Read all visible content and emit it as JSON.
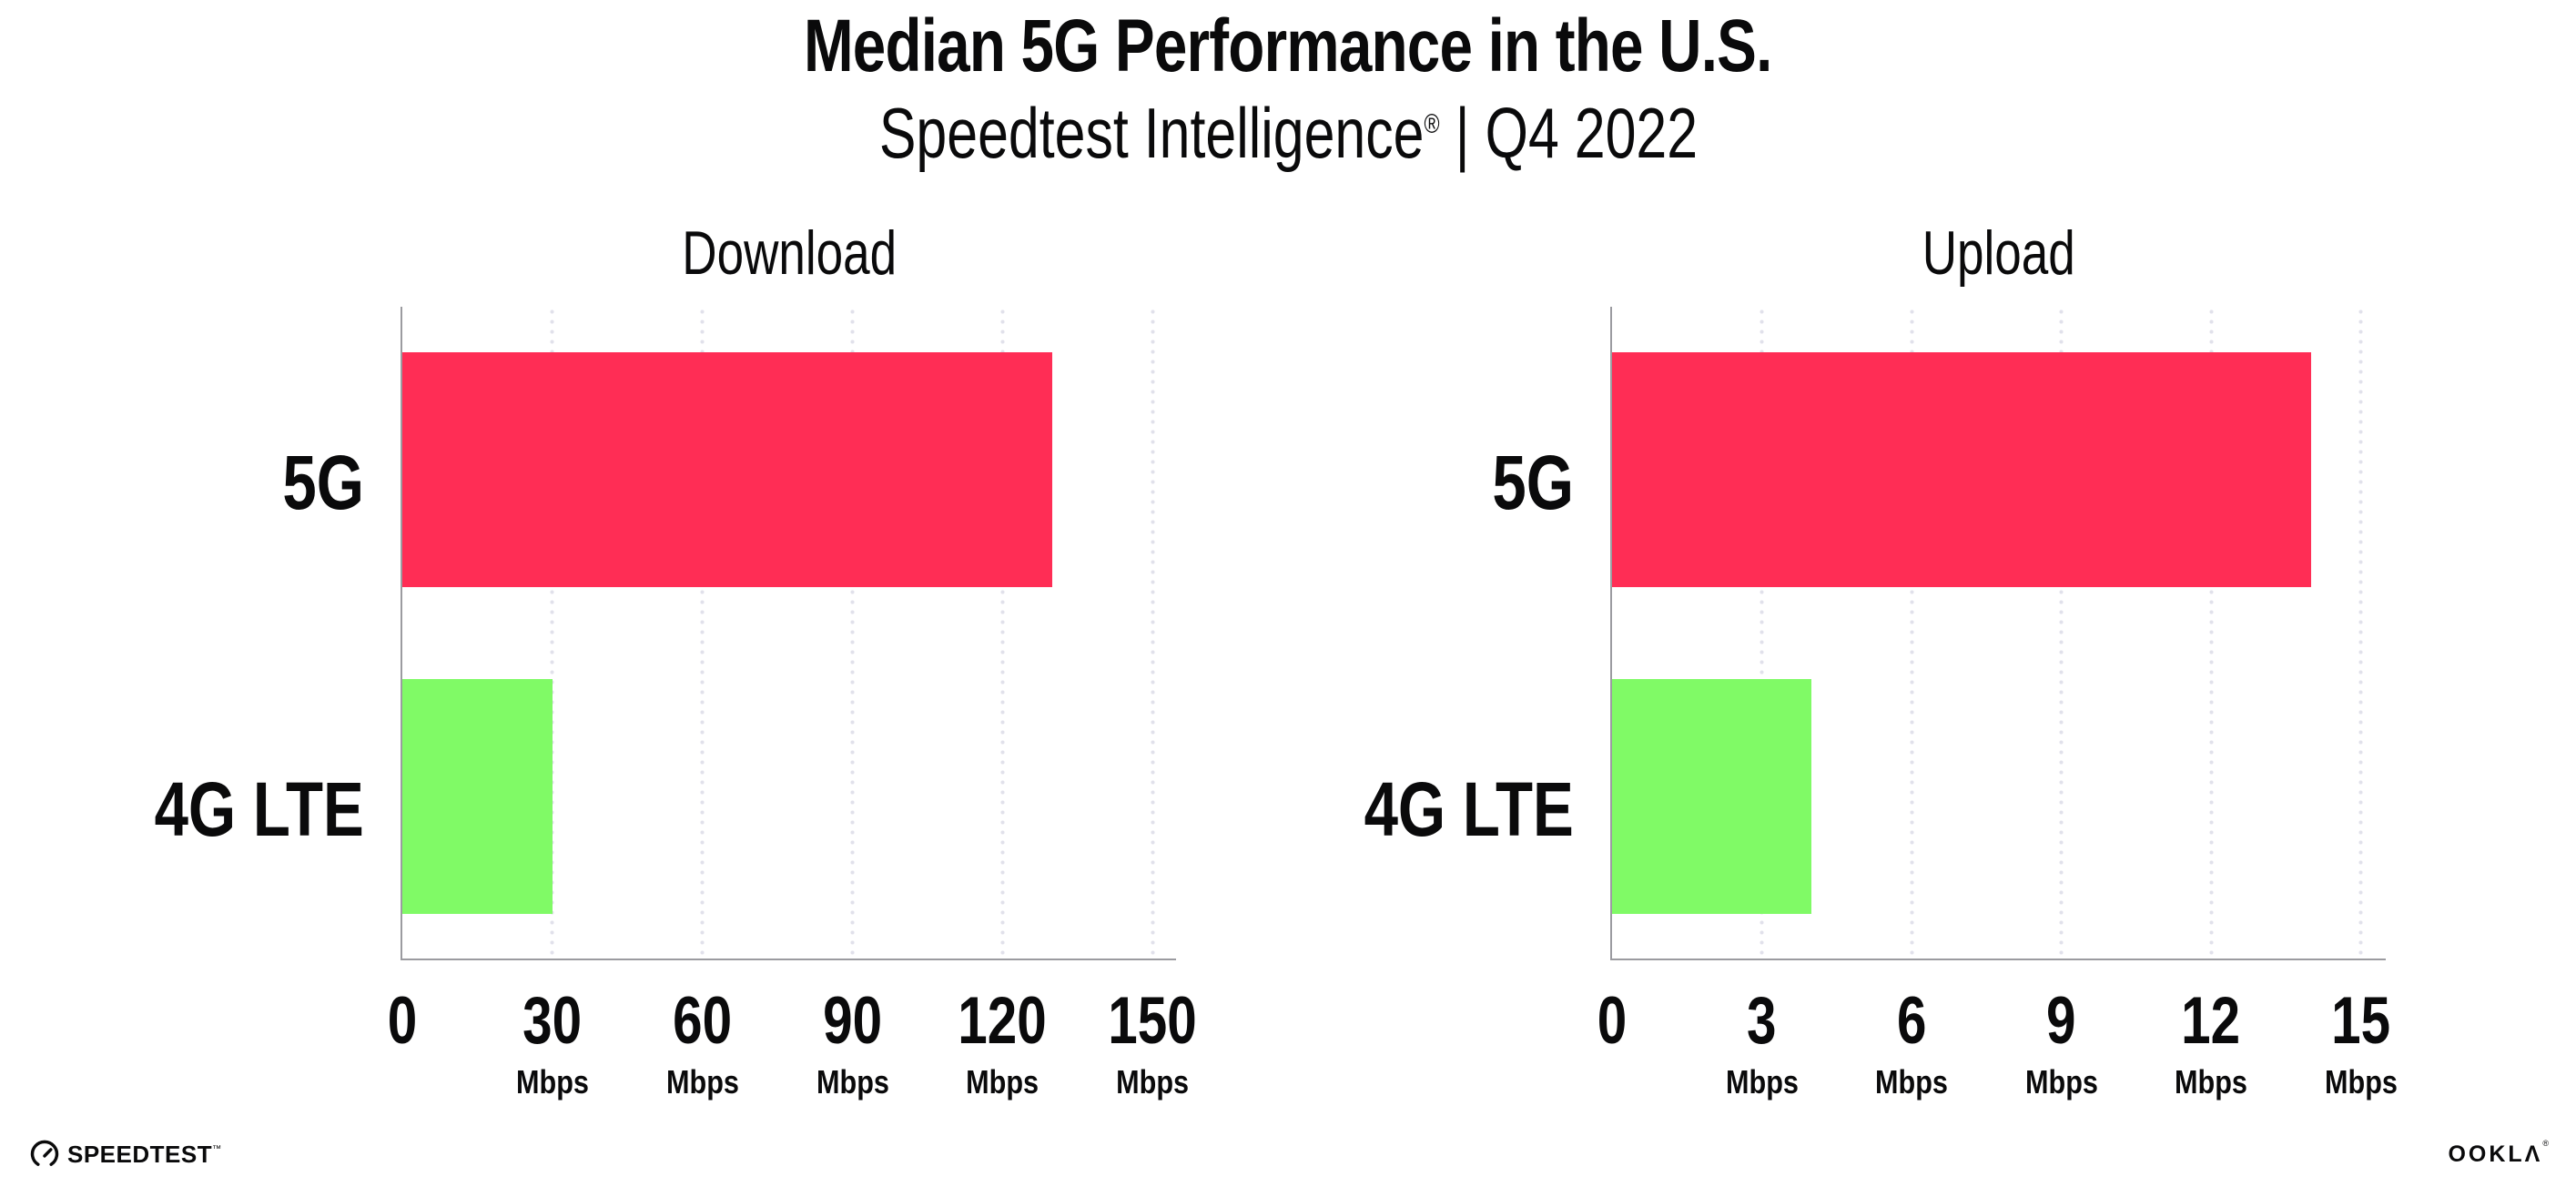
{
  "header": {
    "title": "Median 5G Performance in the U.S.",
    "subtitle_brand": "Speedtest Intelligence",
    "subtitle_reg": "®",
    "subtitle_divider": "|",
    "subtitle_period": "Q4 2022"
  },
  "chart_data": [
    {
      "type": "bar",
      "orientation": "horizontal",
      "title": "Download",
      "categories": [
        "5G",
        "4G LTE"
      ],
      "values": [
        130,
        30
      ],
      "unit": "Mbps",
      "xlim": [
        0,
        154.7
      ],
      "xticks": [
        0,
        30,
        60,
        90,
        120,
        150
      ],
      "grid": "dotted-vertical",
      "legend": "none",
      "bar_colors": [
        "#FF2D55",
        "#80FA66"
      ]
    },
    {
      "type": "bar",
      "orientation": "horizontal",
      "title": "Upload",
      "categories": [
        "5G",
        "4G LTE"
      ],
      "values": [
        14,
        4
      ],
      "unit": "Mbps",
      "xlim": [
        0,
        15.5
      ],
      "xticks": [
        0,
        3,
        6,
        9,
        12,
        15
      ],
      "grid": "dotted-vertical",
      "legend": "none",
      "bar_colors": [
        "#FF2D55",
        "#80FA66"
      ]
    }
  ],
  "footer": {
    "speedtest_label": "SPEEDTEST",
    "speedtest_tm": "™",
    "ookla_label": "OOKLΛ",
    "ookla_reg": "®"
  },
  "colors": {
    "bar_5g": "#FF2D55",
    "bar_4g": "#80FA66",
    "axis": "#9B9BA0",
    "grid_dot": "#E1E1EB",
    "text": "#0A0A0B",
    "background": "#FFFFFF"
  }
}
